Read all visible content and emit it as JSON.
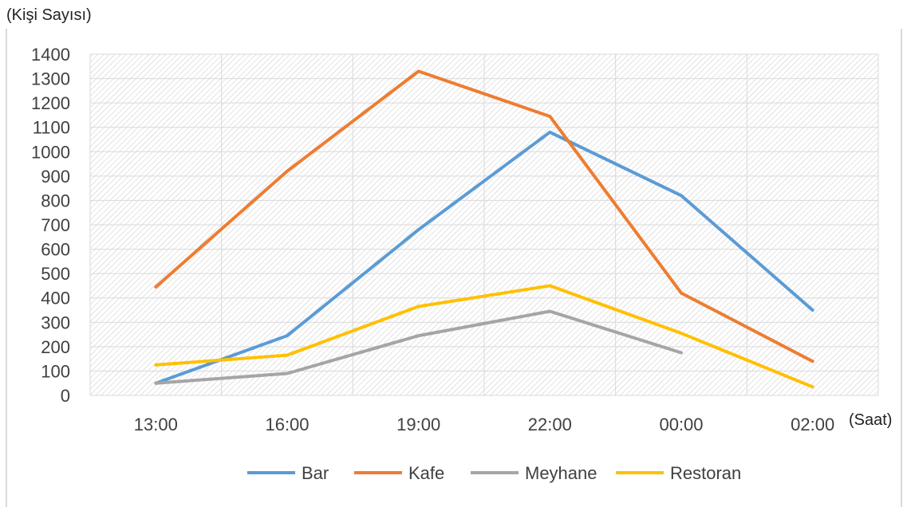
{
  "chart_data": {
    "type": "line",
    "ylabel": "(Kişi Sayısı)",
    "xlabel": "(Saat)",
    "categories": [
      "13:00",
      "16:00",
      "19:00",
      "22:00",
      "00:00",
      "02:00"
    ],
    "ylim": [
      0,
      1400
    ],
    "yticks": [
      0,
      100,
      200,
      300,
      400,
      500,
      600,
      700,
      800,
      900,
      1000,
      1100,
      1200,
      1300,
      1400
    ],
    "grid": true,
    "legend_position": "bottom",
    "series": [
      {
        "name": "Bar",
        "color": "#5B9BD5",
        "values": [
          50,
          245,
          680,
          1080,
          820,
          350
        ]
      },
      {
        "name": "Kafe",
        "color": "#ED7D31",
        "values": [
          445,
          920,
          1330,
          1145,
          420,
          140
        ]
      },
      {
        "name": "Meyhane",
        "color": "#A5A5A5",
        "values": [
          50,
          90,
          245,
          345,
          175,
          null
        ]
      },
      {
        "name": "Restoran",
        "color": "#FFC000",
        "values": [
          125,
          165,
          365,
          450,
          255,
          35
        ]
      }
    ]
  }
}
